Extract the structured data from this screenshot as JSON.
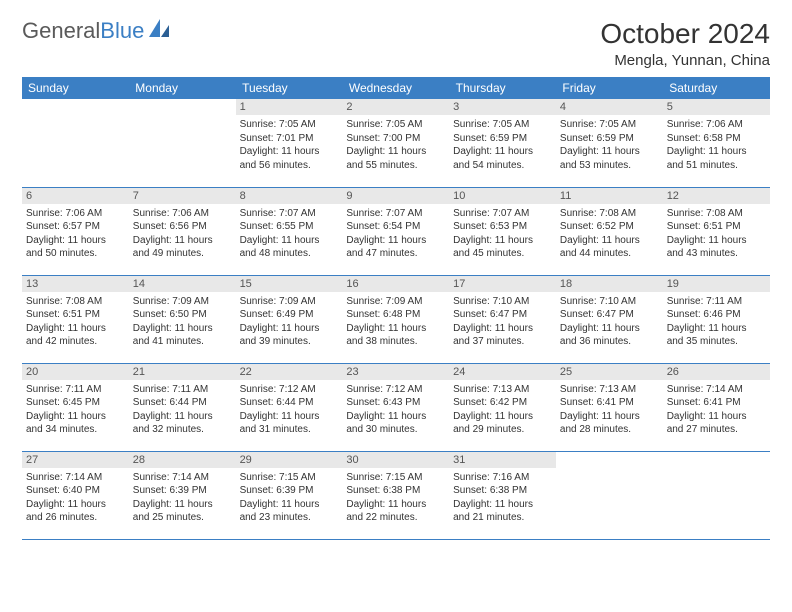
{
  "logo": {
    "text_general": "General",
    "text_blue": "Blue"
  },
  "header": {
    "title": "October 2024",
    "location": "Mengla, Yunnan, China"
  },
  "colors": {
    "header_bg": "#3b7fc4",
    "header_text": "#ffffff",
    "day_header_bg": "#e8e8e8",
    "day_header_text": "#555555",
    "border": "#3b7fc4",
    "body_text": "#333333",
    "logo_gray": "#5a5a5a",
    "logo_blue": "#3b7fc4"
  },
  "weekdays": [
    "Sunday",
    "Monday",
    "Tuesday",
    "Wednesday",
    "Thursday",
    "Friday",
    "Saturday"
  ],
  "weeks": [
    [
      null,
      null,
      {
        "day": "1",
        "sunrise": "Sunrise: 7:05 AM",
        "sunset": "Sunset: 7:01 PM",
        "daylight": "Daylight: 11 hours and 56 minutes."
      },
      {
        "day": "2",
        "sunrise": "Sunrise: 7:05 AM",
        "sunset": "Sunset: 7:00 PM",
        "daylight": "Daylight: 11 hours and 55 minutes."
      },
      {
        "day": "3",
        "sunrise": "Sunrise: 7:05 AM",
        "sunset": "Sunset: 6:59 PM",
        "daylight": "Daylight: 11 hours and 54 minutes."
      },
      {
        "day": "4",
        "sunrise": "Sunrise: 7:05 AM",
        "sunset": "Sunset: 6:59 PM",
        "daylight": "Daylight: 11 hours and 53 minutes."
      },
      {
        "day": "5",
        "sunrise": "Sunrise: 7:06 AM",
        "sunset": "Sunset: 6:58 PM",
        "daylight": "Daylight: 11 hours and 51 minutes."
      }
    ],
    [
      {
        "day": "6",
        "sunrise": "Sunrise: 7:06 AM",
        "sunset": "Sunset: 6:57 PM",
        "daylight": "Daylight: 11 hours and 50 minutes."
      },
      {
        "day": "7",
        "sunrise": "Sunrise: 7:06 AM",
        "sunset": "Sunset: 6:56 PM",
        "daylight": "Daylight: 11 hours and 49 minutes."
      },
      {
        "day": "8",
        "sunrise": "Sunrise: 7:07 AM",
        "sunset": "Sunset: 6:55 PM",
        "daylight": "Daylight: 11 hours and 48 minutes."
      },
      {
        "day": "9",
        "sunrise": "Sunrise: 7:07 AM",
        "sunset": "Sunset: 6:54 PM",
        "daylight": "Daylight: 11 hours and 47 minutes."
      },
      {
        "day": "10",
        "sunrise": "Sunrise: 7:07 AM",
        "sunset": "Sunset: 6:53 PM",
        "daylight": "Daylight: 11 hours and 45 minutes."
      },
      {
        "day": "11",
        "sunrise": "Sunrise: 7:08 AM",
        "sunset": "Sunset: 6:52 PM",
        "daylight": "Daylight: 11 hours and 44 minutes."
      },
      {
        "day": "12",
        "sunrise": "Sunrise: 7:08 AM",
        "sunset": "Sunset: 6:51 PM",
        "daylight": "Daylight: 11 hours and 43 minutes."
      }
    ],
    [
      {
        "day": "13",
        "sunrise": "Sunrise: 7:08 AM",
        "sunset": "Sunset: 6:51 PM",
        "daylight": "Daylight: 11 hours and 42 minutes."
      },
      {
        "day": "14",
        "sunrise": "Sunrise: 7:09 AM",
        "sunset": "Sunset: 6:50 PM",
        "daylight": "Daylight: 11 hours and 41 minutes."
      },
      {
        "day": "15",
        "sunrise": "Sunrise: 7:09 AM",
        "sunset": "Sunset: 6:49 PM",
        "daylight": "Daylight: 11 hours and 39 minutes."
      },
      {
        "day": "16",
        "sunrise": "Sunrise: 7:09 AM",
        "sunset": "Sunset: 6:48 PM",
        "daylight": "Daylight: 11 hours and 38 minutes."
      },
      {
        "day": "17",
        "sunrise": "Sunrise: 7:10 AM",
        "sunset": "Sunset: 6:47 PM",
        "daylight": "Daylight: 11 hours and 37 minutes."
      },
      {
        "day": "18",
        "sunrise": "Sunrise: 7:10 AM",
        "sunset": "Sunset: 6:47 PM",
        "daylight": "Daylight: 11 hours and 36 minutes."
      },
      {
        "day": "19",
        "sunrise": "Sunrise: 7:11 AM",
        "sunset": "Sunset: 6:46 PM",
        "daylight": "Daylight: 11 hours and 35 minutes."
      }
    ],
    [
      {
        "day": "20",
        "sunrise": "Sunrise: 7:11 AM",
        "sunset": "Sunset: 6:45 PM",
        "daylight": "Daylight: 11 hours and 34 minutes."
      },
      {
        "day": "21",
        "sunrise": "Sunrise: 7:11 AM",
        "sunset": "Sunset: 6:44 PM",
        "daylight": "Daylight: 11 hours and 32 minutes."
      },
      {
        "day": "22",
        "sunrise": "Sunrise: 7:12 AM",
        "sunset": "Sunset: 6:44 PM",
        "daylight": "Daylight: 11 hours and 31 minutes."
      },
      {
        "day": "23",
        "sunrise": "Sunrise: 7:12 AM",
        "sunset": "Sunset: 6:43 PM",
        "daylight": "Daylight: 11 hours and 30 minutes."
      },
      {
        "day": "24",
        "sunrise": "Sunrise: 7:13 AM",
        "sunset": "Sunset: 6:42 PM",
        "daylight": "Daylight: 11 hours and 29 minutes."
      },
      {
        "day": "25",
        "sunrise": "Sunrise: 7:13 AM",
        "sunset": "Sunset: 6:41 PM",
        "daylight": "Daylight: 11 hours and 28 minutes."
      },
      {
        "day": "26",
        "sunrise": "Sunrise: 7:14 AM",
        "sunset": "Sunset: 6:41 PM",
        "daylight": "Daylight: 11 hours and 27 minutes."
      }
    ],
    [
      {
        "day": "27",
        "sunrise": "Sunrise: 7:14 AM",
        "sunset": "Sunset: 6:40 PM",
        "daylight": "Daylight: 11 hours and 26 minutes."
      },
      {
        "day": "28",
        "sunrise": "Sunrise: 7:14 AM",
        "sunset": "Sunset: 6:39 PM",
        "daylight": "Daylight: 11 hours and 25 minutes."
      },
      {
        "day": "29",
        "sunrise": "Sunrise: 7:15 AM",
        "sunset": "Sunset: 6:39 PM",
        "daylight": "Daylight: 11 hours and 23 minutes."
      },
      {
        "day": "30",
        "sunrise": "Sunrise: 7:15 AM",
        "sunset": "Sunset: 6:38 PM",
        "daylight": "Daylight: 11 hours and 22 minutes."
      },
      {
        "day": "31",
        "sunrise": "Sunrise: 7:16 AM",
        "sunset": "Sunset: 6:38 PM",
        "daylight": "Daylight: 11 hours and 21 minutes."
      },
      null,
      null
    ]
  ]
}
